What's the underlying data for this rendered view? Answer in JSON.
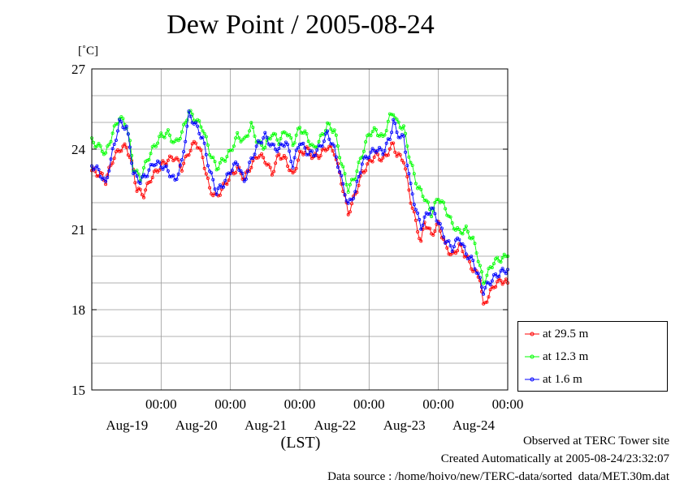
{
  "chart_data": {
    "type": "line",
    "title": "Dew Point / 2005-08-24",
    "ylabel": "[˚C]",
    "xlabel": "(LST)",
    "ylim": [
      15,
      27
    ],
    "yticks": [
      15,
      18,
      21,
      24,
      27
    ],
    "xticks": [
      {
        "time": "00:00",
        "date": "Aug-19",
        "t": 1
      },
      {
        "time": "00:00",
        "date": "Aug-20",
        "t": 2
      },
      {
        "time": "00:00",
        "date": "Aug-21",
        "t": 3
      },
      {
        "time": "00:00",
        "date": "Aug-22",
        "t": 4
      },
      {
        "time": "00:00",
        "date": "Aug-23",
        "t": 5
      },
      {
        "time": "00:00",
        "date": "Aug-24",
        "t": 6
      }
    ],
    "xlim": [
      0,
      6
    ],
    "grid": true,
    "legend_position": "bottom-right",
    "series": [
      {
        "name": "at 29.5 m",
        "color": "#ff0000",
        "points": [
          [
            0,
            23.2
          ],
          [
            0.15,
            23.0
          ],
          [
            0.2,
            22.8
          ],
          [
            0.3,
            23.6
          ],
          [
            0.4,
            24.0
          ],
          [
            0.5,
            24.1
          ],
          [
            0.55,
            23.7
          ],
          [
            0.6,
            23.2
          ],
          [
            0.65,
            22.5
          ],
          [
            0.75,
            22.3
          ],
          [
            0.85,
            22.9
          ],
          [
            1.0,
            23.4
          ],
          [
            1.1,
            23.6
          ],
          [
            1.2,
            23.7
          ],
          [
            1.3,
            23.3
          ],
          [
            1.4,
            23.9
          ],
          [
            1.5,
            24.3
          ],
          [
            1.6,
            23.7
          ],
          [
            1.7,
            22.5
          ],
          [
            1.8,
            22.2
          ],
          [
            1.9,
            22.6
          ],
          [
            2.0,
            23.0
          ],
          [
            2.1,
            23.3
          ],
          [
            2.2,
            22.9
          ],
          [
            2.3,
            23.4
          ],
          [
            2.4,
            23.8
          ],
          [
            2.5,
            23.6
          ],
          [
            2.6,
            23.1
          ],
          [
            2.7,
            23.8
          ],
          [
            2.8,
            23.6
          ],
          [
            2.9,
            23.0
          ],
          [
            3.0,
            23.8
          ],
          [
            3.1,
            24.0
          ],
          [
            3.2,
            23.7
          ],
          [
            3.3,
            23.8
          ],
          [
            3.4,
            24.1
          ],
          [
            3.5,
            23.9
          ],
          [
            3.6,
            22.8
          ],
          [
            3.7,
            21.6
          ],
          [
            3.8,
            22.3
          ],
          [
            3.9,
            23.1
          ],
          [
            4.0,
            23.5
          ],
          [
            4.1,
            23.8
          ],
          [
            4.2,
            23.6
          ],
          [
            4.3,
            24.0
          ],
          [
            4.35,
            24.2
          ],
          [
            4.4,
            23.8
          ],
          [
            4.5,
            23.6
          ],
          [
            4.6,
            22.1
          ],
          [
            4.7,
            21.0
          ],
          [
            4.75,
            20.5
          ],
          [
            4.8,
            21.3
          ],
          [
            4.9,
            20.8
          ],
          [
            5.0,
            21.2
          ],
          [
            5.1,
            20.4
          ],
          [
            5.2,
            20.0
          ],
          [
            5.3,
            20.4
          ],
          [
            5.4,
            20.0
          ],
          [
            5.5,
            19.5
          ],
          [
            5.6,
            19.2
          ],
          [
            5.65,
            18.1
          ],
          [
            5.7,
            18.4
          ],
          [
            5.8,
            18.9
          ],
          [
            5.9,
            19.1
          ],
          [
            6.0,
            19.0
          ]
        ]
      },
      {
        "name": "at 12.3 m",
        "color": "#00ff00",
        "points": [
          [
            0,
            24.3
          ],
          [
            0.15,
            24.0
          ],
          [
            0.2,
            23.8
          ],
          [
            0.3,
            24.6
          ],
          [
            0.4,
            25.2
          ],
          [
            0.5,
            24.9
          ],
          [
            0.55,
            24.2
          ],
          [
            0.6,
            23.3
          ],
          [
            0.7,
            22.9
          ],
          [
            0.8,
            23.6
          ],
          [
            0.9,
            24.1
          ],
          [
            1.0,
            24.5
          ],
          [
            1.1,
            24.6
          ],
          [
            1.2,
            24.2
          ],
          [
            1.3,
            24.6
          ],
          [
            1.4,
            25.4
          ],
          [
            1.5,
            25.1
          ],
          [
            1.6,
            24.8
          ],
          [
            1.7,
            23.9
          ],
          [
            1.8,
            23.3
          ],
          [
            1.9,
            23.6
          ],
          [
            2.0,
            23.9
          ],
          [
            2.1,
            24.5
          ],
          [
            2.2,
            24.3
          ],
          [
            2.3,
            24.9
          ],
          [
            2.4,
            24.2
          ],
          [
            2.5,
            24.1
          ],
          [
            2.6,
            24.6
          ],
          [
            2.7,
            24.3
          ],
          [
            2.8,
            24.7
          ],
          [
            2.9,
            24.2
          ],
          [
            3.0,
            24.8
          ],
          [
            3.1,
            24.5
          ],
          [
            3.2,
            24.0
          ],
          [
            3.3,
            24.4
          ],
          [
            3.4,
            24.9
          ],
          [
            3.5,
            24.7
          ],
          [
            3.6,
            23.5
          ],
          [
            3.7,
            22.5
          ],
          [
            3.8,
            23.0
          ],
          [
            3.9,
            23.8
          ],
          [
            4.0,
            24.6
          ],
          [
            4.1,
            24.7
          ],
          [
            4.2,
            24.4
          ],
          [
            4.3,
            25.2
          ],
          [
            4.35,
            25.4
          ],
          [
            4.4,
            25.0
          ],
          [
            4.5,
            24.8
          ],
          [
            4.6,
            23.5
          ],
          [
            4.7,
            22.6
          ],
          [
            4.8,
            22.2
          ],
          [
            4.9,
            21.6
          ],
          [
            5.0,
            22.2
          ],
          [
            5.1,
            21.8
          ],
          [
            5.2,
            21.2
          ],
          [
            5.3,
            20.9
          ],
          [
            5.4,
            21.0
          ],
          [
            5.5,
            20.6
          ],
          [
            5.55,
            20.2
          ],
          [
            5.6,
            19.6
          ],
          [
            5.65,
            19.0
          ],
          [
            5.7,
            19.3
          ],
          [
            5.8,
            19.8
          ],
          [
            5.9,
            19.9
          ],
          [
            6.0,
            20.0
          ]
        ]
      },
      {
        "name": "at 1.6 m",
        "color": "#0000ff",
        "points": [
          [
            0,
            23.4
          ],
          [
            0.1,
            23.2
          ],
          [
            0.2,
            22.7
          ],
          [
            0.3,
            23.9
          ],
          [
            0.4,
            25.0
          ],
          [
            0.5,
            24.8
          ],
          [
            0.55,
            24.1
          ],
          [
            0.6,
            23.1
          ],
          [
            0.7,
            22.8
          ],
          [
            0.8,
            23.1
          ],
          [
            0.9,
            23.5
          ],
          [
            1.0,
            23.4
          ],
          [
            1.1,
            23.2
          ],
          [
            1.2,
            22.8
          ],
          [
            1.3,
            23.5
          ],
          [
            1.4,
            25.3
          ],
          [
            1.5,
            24.9
          ],
          [
            1.6,
            24.4
          ],
          [
            1.7,
            23.2
          ],
          [
            1.8,
            22.4
          ],
          [
            1.9,
            22.7
          ],
          [
            2.0,
            23.2
          ],
          [
            2.1,
            23.5
          ],
          [
            2.2,
            22.8
          ],
          [
            2.3,
            23.6
          ],
          [
            2.4,
            24.2
          ],
          [
            2.5,
            24.5
          ],
          [
            2.6,
            24.1
          ],
          [
            2.7,
            24.0
          ],
          [
            2.8,
            24.3
          ],
          [
            2.9,
            23.4
          ],
          [
            3.0,
            24.3
          ],
          [
            3.1,
            23.9
          ],
          [
            3.2,
            23.8
          ],
          [
            3.3,
            24.1
          ],
          [
            3.4,
            24.6
          ],
          [
            3.5,
            24.0
          ],
          [
            3.6,
            22.9
          ],
          [
            3.7,
            21.9
          ],
          [
            3.8,
            22.4
          ],
          [
            3.9,
            23.5
          ],
          [
            4.0,
            23.8
          ],
          [
            4.1,
            24.0
          ],
          [
            4.2,
            23.9
          ],
          [
            4.3,
            24.4
          ],
          [
            4.35,
            25.1
          ],
          [
            4.4,
            24.6
          ],
          [
            4.5,
            24.4
          ],
          [
            4.6,
            22.6
          ],
          [
            4.7,
            21.5
          ],
          [
            4.75,
            21.1
          ],
          [
            4.8,
            21.4
          ],
          [
            4.9,
            21.8
          ],
          [
            5.0,
            21.3
          ],
          [
            5.1,
            20.6
          ],
          [
            5.2,
            20.3
          ],
          [
            5.3,
            20.7
          ],
          [
            5.4,
            20.1
          ],
          [
            5.5,
            19.8
          ],
          [
            5.6,
            19.1
          ],
          [
            5.65,
            18.7
          ],
          [
            5.7,
            18.9
          ],
          [
            5.8,
            19.2
          ],
          [
            5.9,
            19.4
          ],
          [
            6.0,
            19.5
          ]
        ]
      }
    ]
  },
  "footer": {
    "line1": "Observed at TERC Tower site",
    "line2": "Created Automatically at 2005-08-24/23:32:07",
    "line3": "Data source : /home/hoivo/new/TERC-data/sorted  data/MET.30m.dat"
  }
}
